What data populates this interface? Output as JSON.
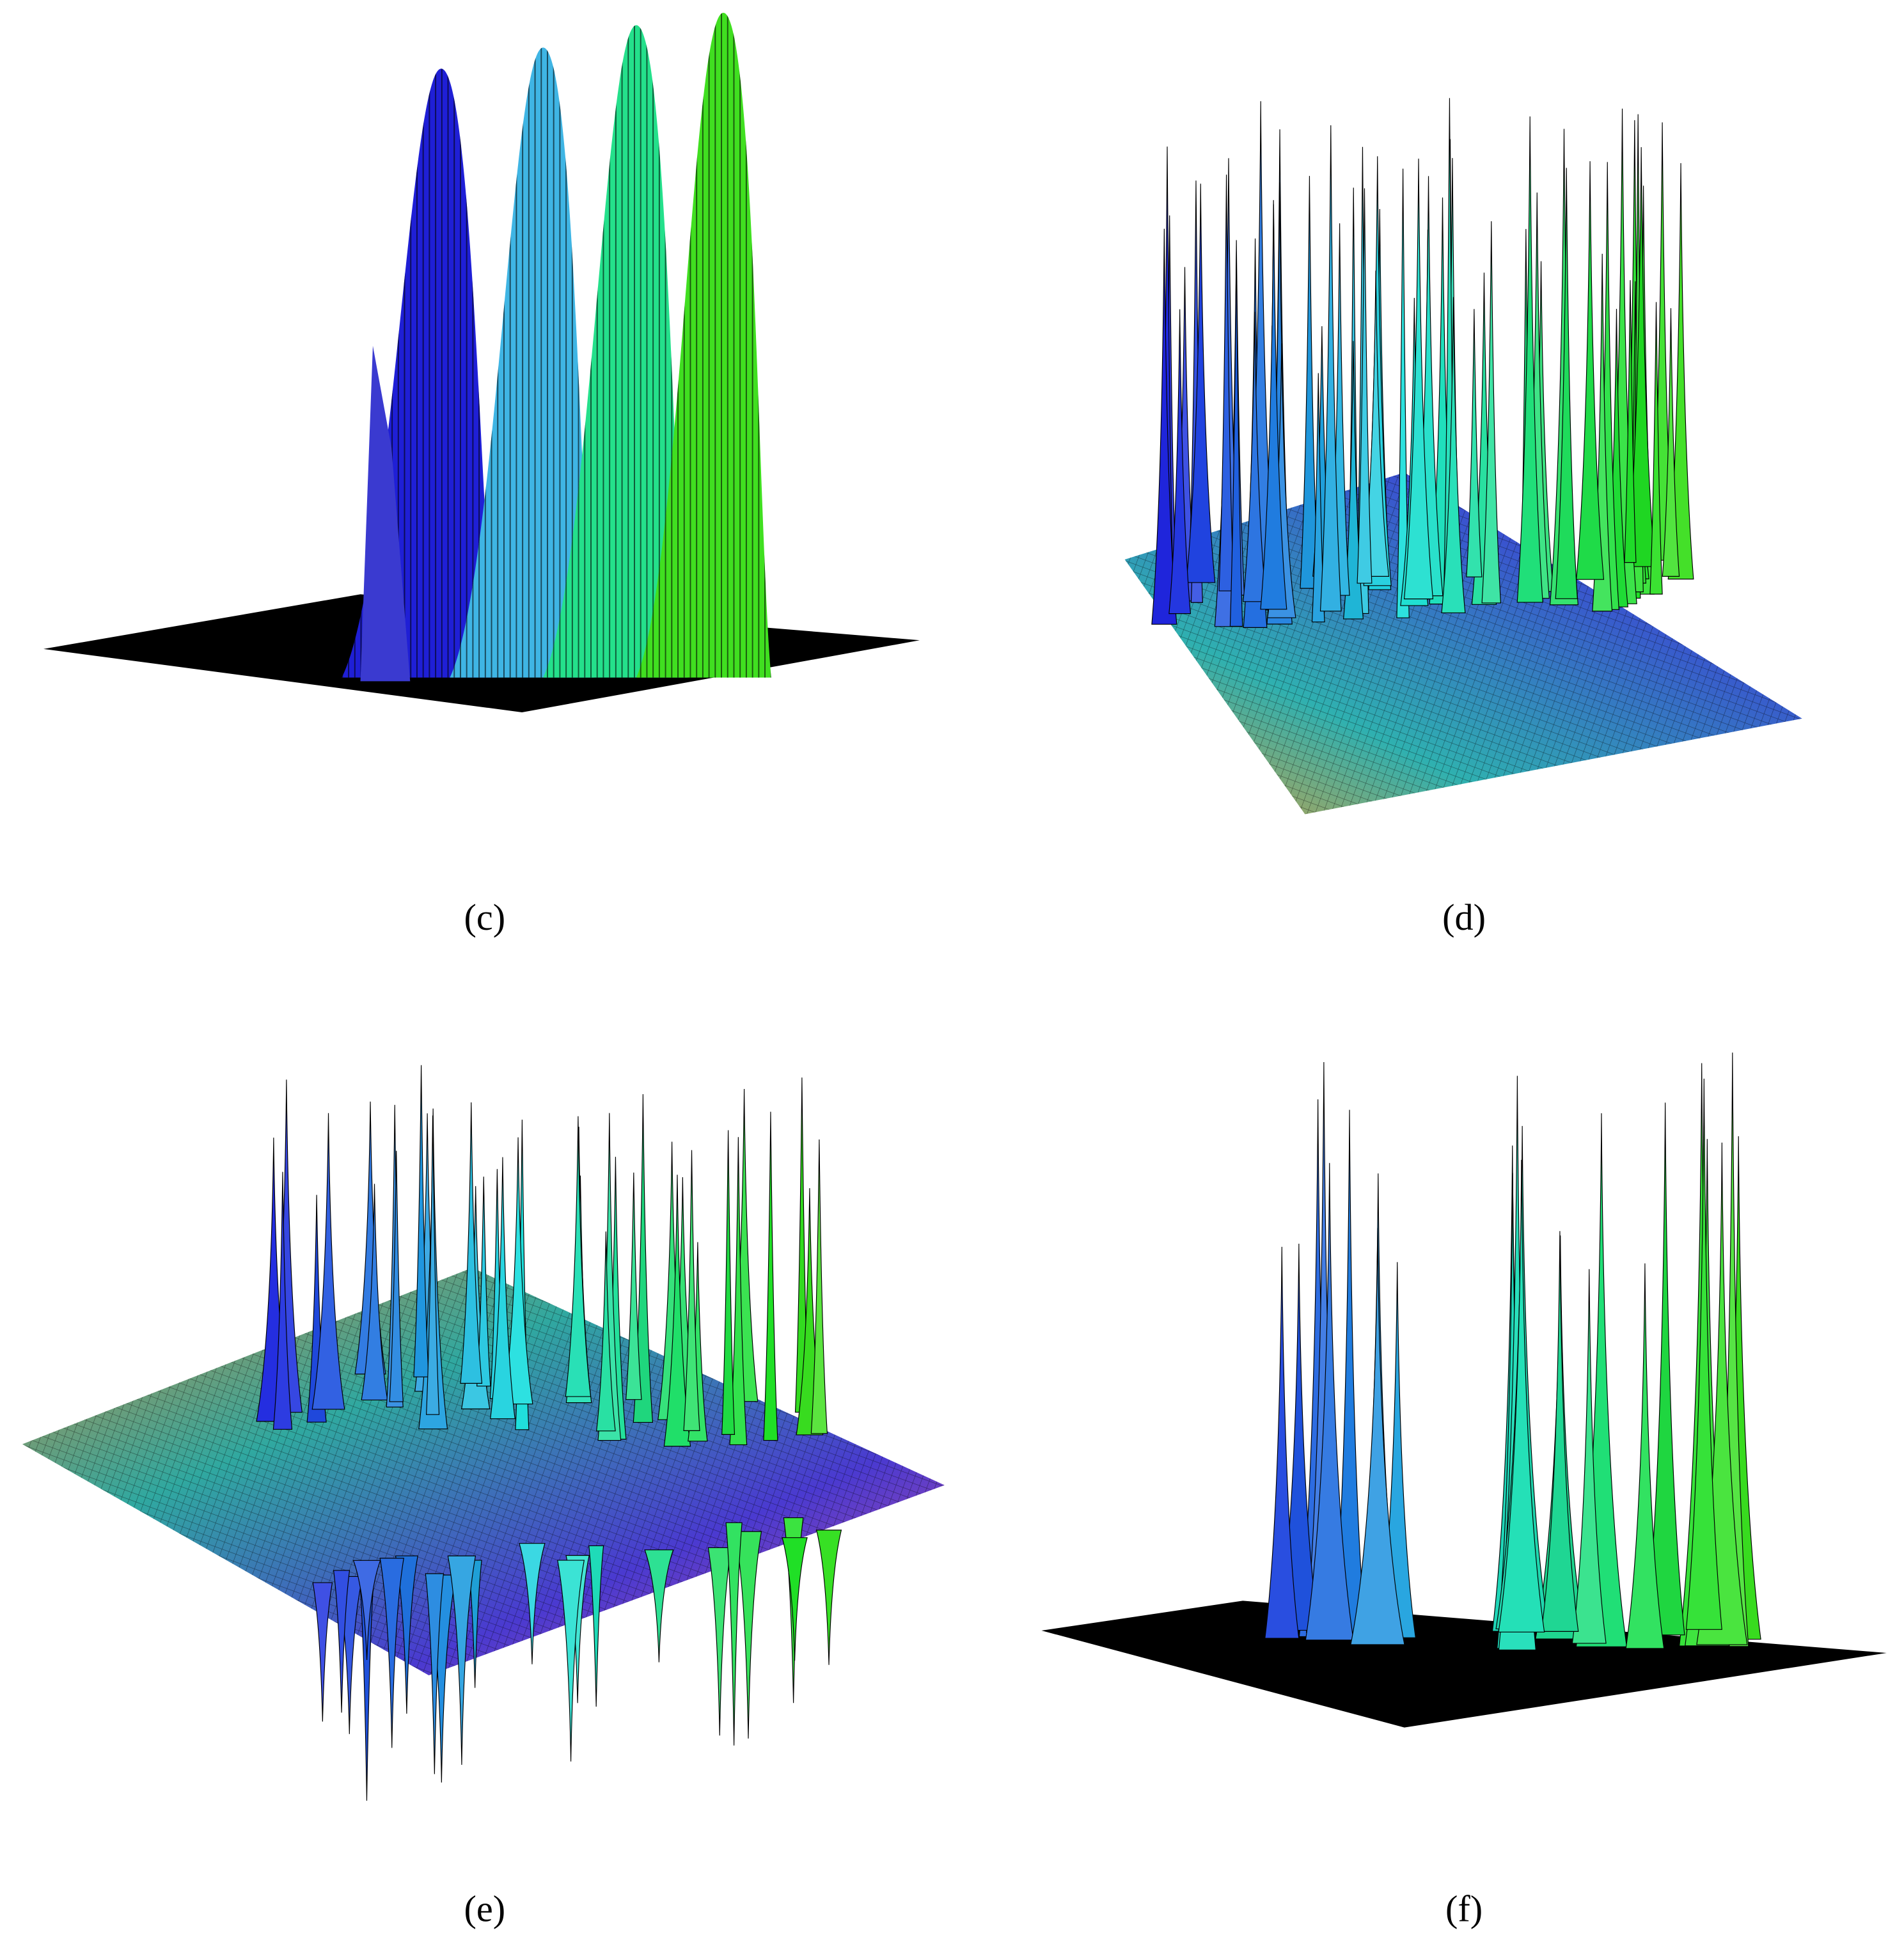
{
  "panels": [
    {
      "label": "(c)"
    },
    {
      "label": "(d)"
    },
    {
      "label": "(e)"
    },
    {
      "label": "(f)"
    }
  ]
}
